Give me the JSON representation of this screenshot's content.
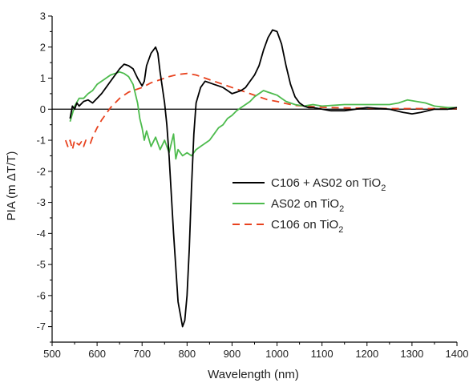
{
  "chart_data": {
    "type": "line",
    "title": "",
    "xlabel": "Wavelength (nm)",
    "ylabel": "PIA (m ΔT/T)",
    "xlim": [
      500,
      1400
    ],
    "ylim": [
      -7.5,
      3
    ],
    "x_ticks": [
      500,
      600,
      700,
      800,
      900,
      1000,
      1100,
      1200,
      1300,
      1400
    ],
    "y_ticks": [
      3,
      2,
      1,
      0,
      -1,
      -2,
      -3,
      -4,
      -5,
      -6,
      -7
    ],
    "zero_line": true,
    "grid": false,
    "legend_position": "right-middle",
    "legend": [
      {
        "base": "C106 + AS02 on TiO",
        "sub": "2"
      },
      {
        "base": "AS02 on TiO",
        "sub": "2"
      },
      {
        "base": "C106 on TiO",
        "sub": "2"
      }
    ],
    "series": [
      {
        "name": "C106 + AS02 on TiO2",
        "color": "#000000",
        "style": "solid",
        "x": [
          540,
          545,
          550,
          555,
          560,
          570,
          580,
          590,
          600,
          610,
          620,
          630,
          640,
          650,
          660,
          670,
          680,
          690,
          700,
          705,
          710,
          720,
          730,
          735,
          740,
          750,
          755,
          760,
          770,
          780,
          790,
          795,
          800,
          805,
          810,
          815,
          820,
          830,
          840,
          850,
          860,
          870,
          880,
          890,
          900,
          910,
          920,
          930,
          940,
          950,
          960,
          970,
          980,
          990,
          1000,
          1010,
          1020,
          1030,
          1040,
          1050,
          1060,
          1070,
          1080,
          1100,
          1120,
          1150,
          1200,
          1250,
          1280,
          1300,
          1320,
          1350,
          1380,
          1400
        ],
        "y": [
          -0.3,
          0.1,
          0.0,
          0.2,
          0.1,
          0.25,
          0.3,
          0.2,
          0.35,
          0.5,
          0.7,
          0.9,
          1.1,
          1.3,
          1.45,
          1.4,
          1.3,
          1.0,
          0.75,
          0.9,
          1.4,
          1.8,
          2.0,
          1.8,
          1.2,
          0.2,
          -0.5,
          -1.5,
          -4.0,
          -6.2,
          -7.0,
          -6.8,
          -6.0,
          -4.5,
          -2.5,
          -0.8,
          0.2,
          0.7,
          0.9,
          0.85,
          0.8,
          0.75,
          0.7,
          0.6,
          0.5,
          0.55,
          0.6,
          0.7,
          0.9,
          1.1,
          1.4,
          1.9,
          2.3,
          2.55,
          2.5,
          2.1,
          1.4,
          0.8,
          0.4,
          0.2,
          0.1,
          0.05,
          0.05,
          0.0,
          -0.05,
          -0.05,
          0.05,
          0.0,
          -0.1,
          -0.15,
          -0.1,
          0.0,
          0.0,
          0.05
        ]
      },
      {
        "name": "AS02 on TiO2",
        "color": "#4dbb4d",
        "style": "solid",
        "x": [
          540,
          550,
          560,
          570,
          580,
          590,
          600,
          610,
          620,
          630,
          640,
          650,
          660,
          670,
          680,
          690,
          695,
          700,
          705,
          710,
          720,
          730,
          740,
          750,
          760,
          770,
          775,
          780,
          790,
          800,
          810,
          820,
          830,
          840,
          850,
          860,
          870,
          880,
          890,
          900,
          910,
          920,
          930,
          940,
          950,
          960,
          970,
          980,
          990,
          1000,
          1010,
          1020,
          1040,
          1060,
          1080,
          1100,
          1150,
          1200,
          1250,
          1270,
          1290,
          1310,
          1330,
          1350,
          1380,
          1400
        ],
        "y": [
          -0.4,
          0.1,
          0.35,
          0.35,
          0.5,
          0.6,
          0.8,
          0.9,
          1.0,
          1.1,
          1.15,
          1.2,
          1.15,
          1.05,
          0.8,
          0.2,
          -0.3,
          -0.6,
          -1.0,
          -0.7,
          -1.2,
          -0.9,
          -1.3,
          -1.0,
          -1.4,
          -0.8,
          -1.6,
          -1.3,
          -1.5,
          -1.4,
          -1.5,
          -1.3,
          -1.2,
          -1.1,
          -1.0,
          -0.8,
          -0.6,
          -0.5,
          -0.3,
          -0.2,
          -0.05,
          0.05,
          0.15,
          0.25,
          0.4,
          0.5,
          0.6,
          0.55,
          0.5,
          0.45,
          0.35,
          0.25,
          0.15,
          0.1,
          0.15,
          0.1,
          0.15,
          0.15,
          0.15,
          0.2,
          0.3,
          0.25,
          0.2,
          0.1,
          0.05,
          0.05
        ]
      },
      {
        "name": "C106 on TiO2",
        "color": "#e8421e",
        "style": "dashed",
        "x": [
          530,
          535,
          540,
          545,
          550,
          555,
          560,
          565,
          570,
          575,
          580,
          585,
          590,
          600,
          610,
          620,
          630,
          640,
          650,
          660,
          670,
          680,
          690,
          700,
          720,
          740,
          760,
          780,
          800,
          820,
          840,
          860,
          880,
          900,
          920,
          940,
          960,
          980,
          1000,
          1020,
          1040,
          1060,
          1080,
          1100,
          1150,
          1200,
          1250,
          1300,
          1350,
          1400
        ],
        "y": [
          -1.0,
          -1.2,
          -1.0,
          -1.3,
          -1.0,
          -1.1,
          -1.15,
          -1.05,
          -1.2,
          -1.0,
          -1.05,
          -1.1,
          -0.9,
          -0.6,
          -0.35,
          -0.15,
          0.05,
          0.2,
          0.35,
          0.45,
          0.55,
          0.6,
          0.65,
          0.7,
          0.85,
          0.95,
          1.05,
          1.12,
          1.15,
          1.1,
          1.0,
          0.9,
          0.8,
          0.7,
          0.6,
          0.5,
          0.4,
          0.3,
          0.25,
          0.18,
          0.12,
          0.1,
          0.08,
          0.06,
          0.04,
          0.03,
          0.02,
          0.02,
          0.02,
          0.02
        ]
      }
    ]
  }
}
